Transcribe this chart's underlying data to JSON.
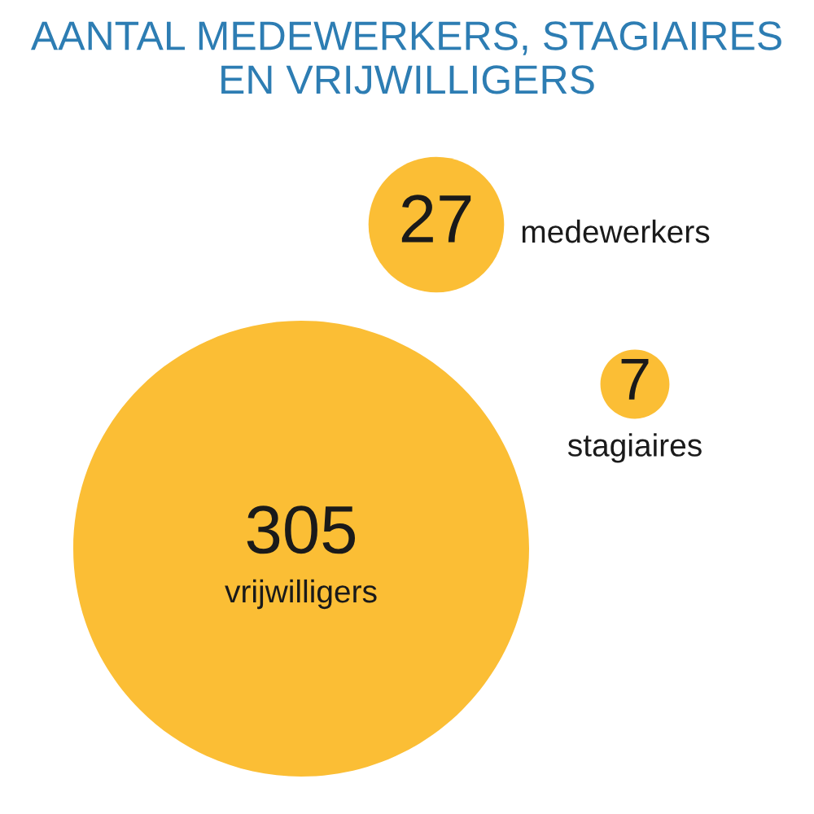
{
  "chart_data": {
    "type": "other",
    "title": "AANTAL MEDEWERKERS, STAGIAIRES EN VRIJWILLIGERS",
    "categories": [
      "medewerkers",
      "stagiaires",
      "vrijwilligers"
    ],
    "values": [
      27,
      7,
      305
    ],
    "color": "#fbbe35",
    "data_labels": true
  }
}
